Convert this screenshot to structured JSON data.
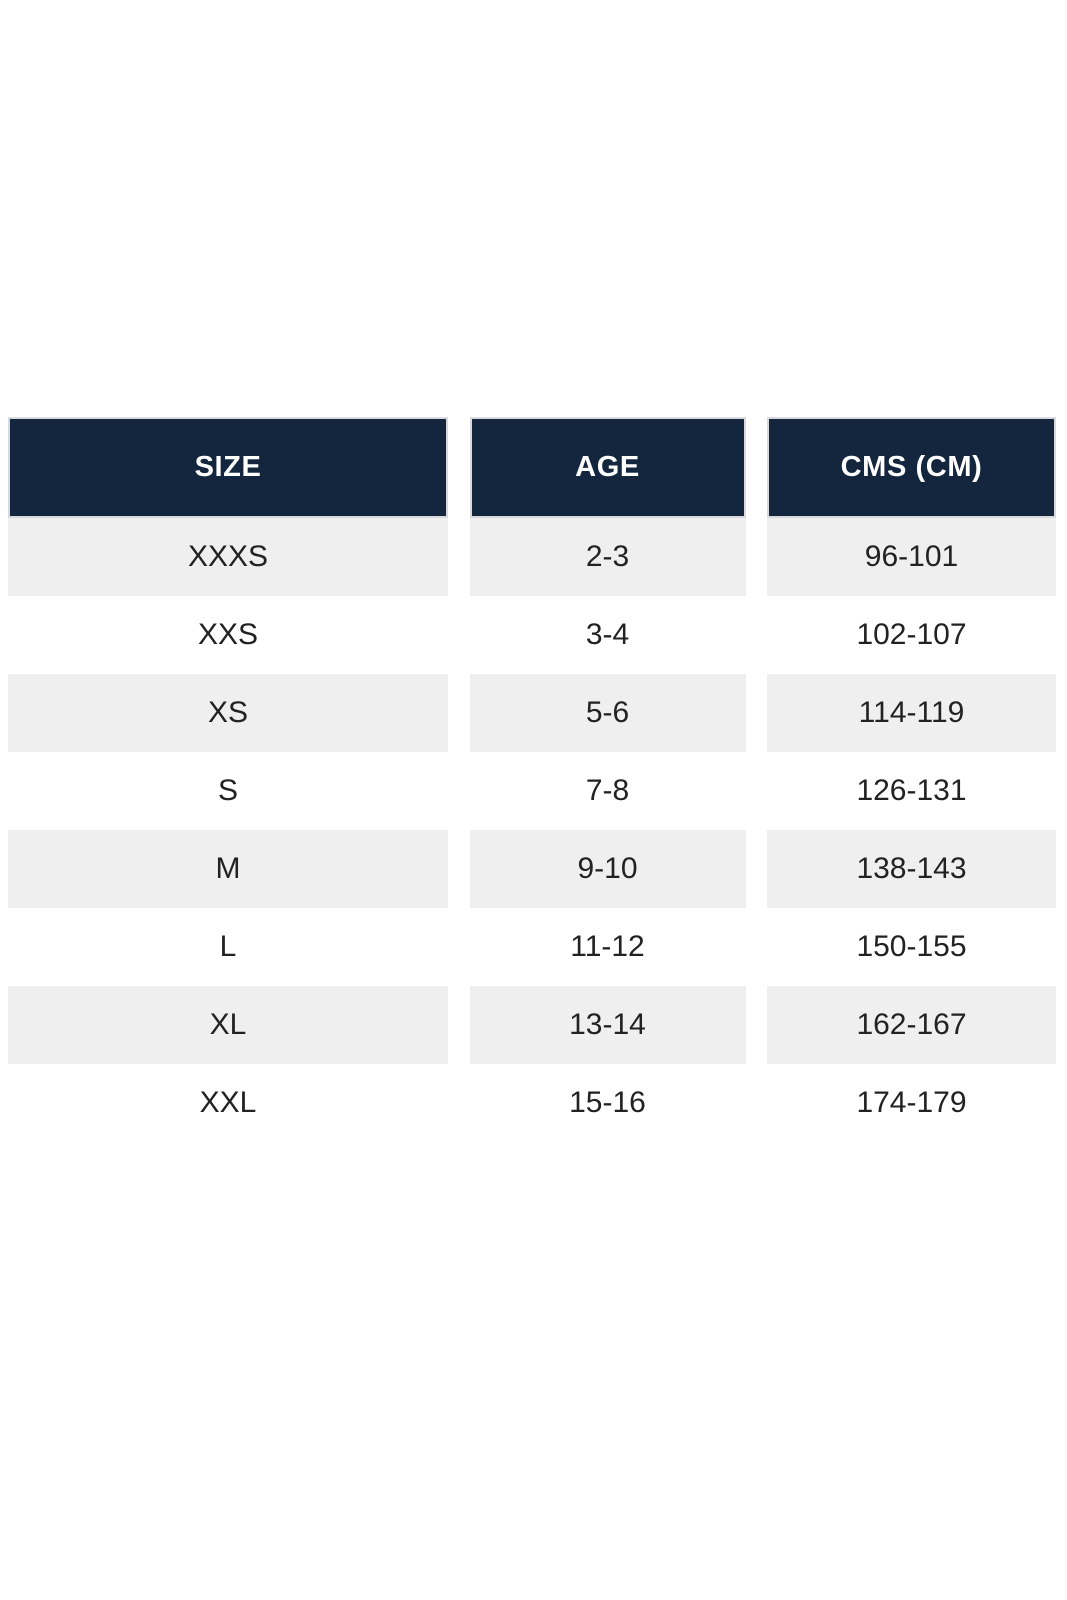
{
  "chart_data": {
    "type": "table",
    "title": "",
    "columns": [
      "SIZE",
      "AGE",
      "CMS (CM)"
    ],
    "rows": [
      [
        "XXXS",
        "2-3",
        "96-101"
      ],
      [
        "XXS",
        "3-4",
        "102-107"
      ],
      [
        "XS",
        "5-6",
        "114-119"
      ],
      [
        "S",
        "7-8",
        "126-131"
      ],
      [
        "M",
        "9-10",
        "138-143"
      ],
      [
        "L",
        "11-12",
        "150-155"
      ],
      [
        "XL",
        "13-14",
        "162-167"
      ],
      [
        "XXL",
        "15-16",
        "174-179"
      ]
    ],
    "layout": {
      "striped": true,
      "stripe_pattern": "odd-rows-gray",
      "columns_separated": true
    }
  },
  "colors": {
    "header_bg": "#13263e",
    "header_text": "#ffffff",
    "row_bg": "#ffffff",
    "row_alt_bg": "#efefef",
    "cell_text": "#222222",
    "page_bg": "#ffffff",
    "header_border": "#d7d9dc"
  }
}
